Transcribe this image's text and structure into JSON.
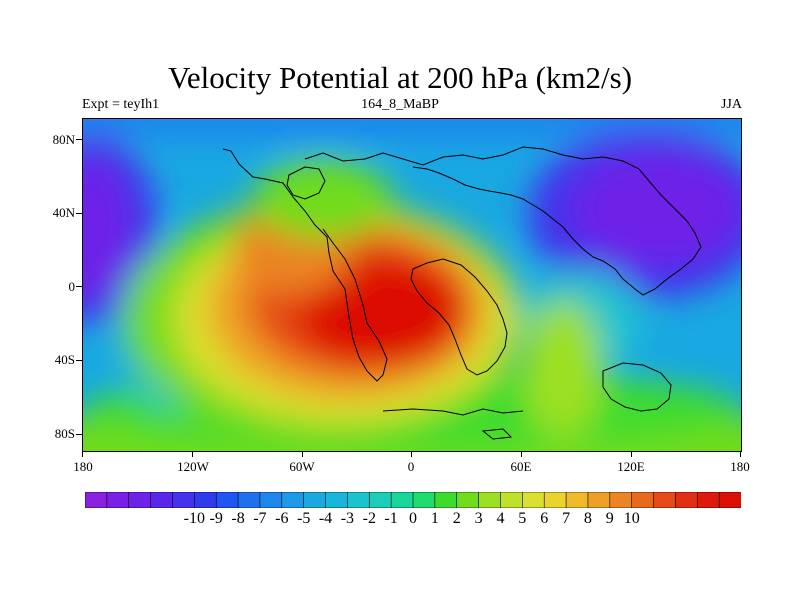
{
  "title": "Velocity Potential at 200 hPa (km2/s)",
  "subtitle_left": "Expt = teyIh1",
  "subtitle_center": "164_8_MaBP",
  "subtitle_right": "JJA",
  "map": {
    "projection": "cylindrical equidistant",
    "lon_range": [
      -180,
      180
    ],
    "lat_range": [
      -90,
      90
    ],
    "field": "velocity potential at 200 hPa (km2/s)",
    "max_center": {
      "lon": -20,
      "lat": -20,
      "value": 10
    },
    "min_centers": [
      {
        "lon": -170,
        "lat": 35,
        "value": -10
      },
      {
        "lon": 135,
        "lat": 40,
        "value": -10
      }
    ],
    "coastline_color": "#000000"
  },
  "x_axis": {
    "ticks": [
      {
        "value": -180,
        "label": "180"
      },
      {
        "value": -120,
        "label": "120W"
      },
      {
        "value": -60,
        "label": "60W"
      },
      {
        "value": 0,
        "label": "0"
      },
      {
        "value": 60,
        "label": "60E"
      },
      {
        "value": 120,
        "label": "120E"
      },
      {
        "value": 180,
        "label": "180"
      }
    ]
  },
  "y_axis": {
    "ticks": [
      {
        "value": 80,
        "label": "80N"
      },
      {
        "value": 40,
        "label": "40N"
      },
      {
        "value": 0,
        "label": "0"
      },
      {
        "value": -40,
        "label": "40S"
      },
      {
        "value": -80,
        "label": "80S"
      }
    ]
  },
  "colorbar": {
    "range": [
      -10.5,
      10.5
    ],
    "colors": [
      "#8a1fe0",
      "#7a1fe6",
      "#6e22e8",
      "#5a26ea",
      "#4532ec",
      "#2f3cee",
      "#1f55f0",
      "#1f70f0",
      "#1f86ee",
      "#1e98e9",
      "#19a8e2",
      "#17b6da",
      "#1bc3cf",
      "#1ccdb8",
      "#18d69a",
      "#1bdc6c",
      "#3cdc2d",
      "#6fdc1e",
      "#9ce024",
      "#bfe12a",
      "#dbe02f",
      "#ecd22d",
      "#f0b92a",
      "#ee9f26",
      "#eb8422",
      "#e8681d",
      "#e54a18",
      "#e22e12",
      "#df1a0c",
      "#dc0f06"
    ],
    "labels": [
      "-10",
      "-9",
      "-8",
      "-7",
      "-6",
      "-5",
      "-4",
      "-3",
      "-2",
      "-1",
      "0",
      "1",
      "2",
      "3",
      "4",
      "5",
      "6",
      "7",
      "8",
      "9",
      "10"
    ]
  }
}
